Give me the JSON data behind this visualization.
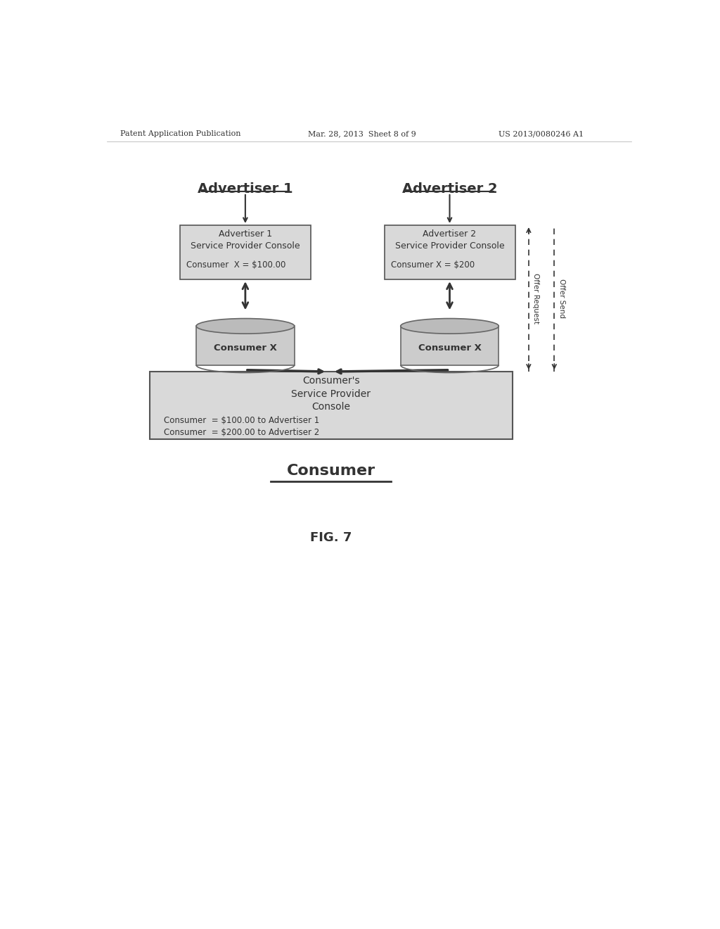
{
  "bg_color": "#ffffff",
  "header_text": "Patent Application Publication",
  "header_date": "Mar. 28, 2013  Sheet 8 of 9",
  "header_patent": "US 2013/0080246 A1",
  "adv1_title": "Advertiser 1",
  "adv2_title": "Advertiser 2",
  "consumer_label": "Consumer",
  "fig_label": "FIG. 7",
  "box1_line1": "Advertiser 1",
  "box1_line2": "Service Provider Console",
  "box1_line3": "Consumer  X = $100.00",
  "box2_line1": "Advertiser 2",
  "box2_line2": "Service Provider Console",
  "box2_line3": "Consumer X = $200",
  "db1_label": "Consumer X",
  "db2_label": "Consumer X",
  "bot_line1": "Consumer's",
  "bot_line2": "Service Provider",
  "bot_line3": "Console",
  "bot_line4": "Consumer  = $100.00 to Advertiser 1",
  "bot_line5": "Consumer  = $200.00 to Advertiser 2",
  "offer_request_label": "Offer Request",
  "offer_send_label": "Offer Send",
  "box_fill": "#d9d9d9",
  "box_edge": "#555555",
  "text_color": "#333333",
  "arrow_color": "#333333"
}
